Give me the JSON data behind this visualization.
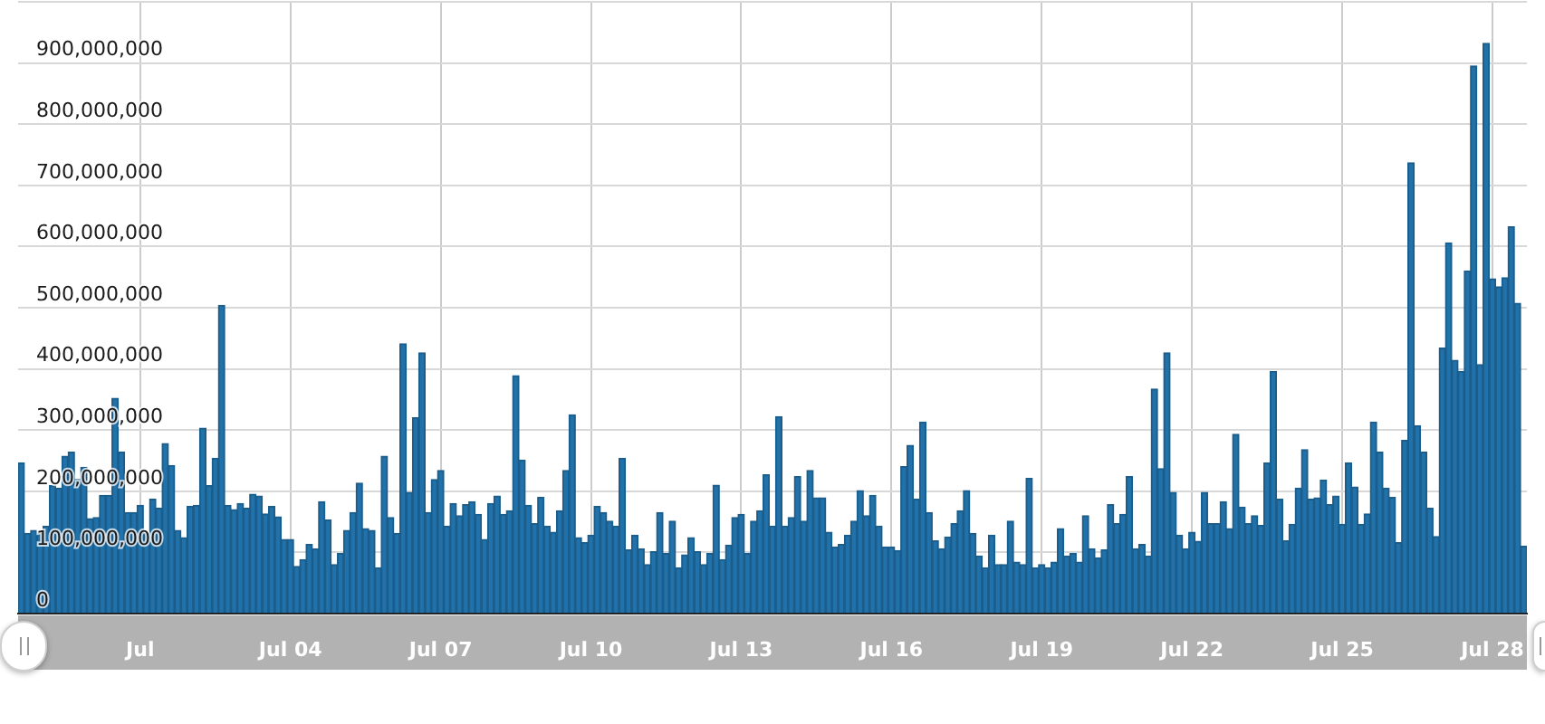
{
  "chart_data": {
    "type": "bar",
    "categories": [
      null,
      null,
      null,
      null,
      null,
      null,
      null,
      null,
      null,
      null,
      null,
      null,
      null,
      null,
      null,
      null,
      null,
      null,
      null,
      "Jul",
      null,
      null,
      null,
      null,
      null,
      null,
      null,
      null,
      null,
      null,
      null,
      null,
      null,
      null,
      null,
      null,
      null,
      null,
      null,
      null,
      null,
      null,
      null,
      "Jul 04",
      null,
      null,
      null,
      null,
      null,
      null,
      null,
      null,
      null,
      null,
      null,
      null,
      null,
      null,
      null,
      null,
      null,
      null,
      null,
      null,
      null,
      null,
      null,
      "Jul 07",
      null,
      null,
      null,
      null,
      null,
      null,
      null,
      null,
      null,
      null,
      null,
      null,
      null,
      null,
      null,
      null,
      null,
      null,
      null,
      null,
      null,
      null,
      null,
      "Jul 10",
      null,
      null,
      null,
      null,
      null,
      null,
      null,
      null,
      null,
      null,
      null,
      null,
      null,
      null,
      null,
      null,
      null,
      null,
      null,
      null,
      null,
      null,
      null,
      "Jul 13",
      null,
      null,
      null,
      null,
      null,
      null,
      null,
      null,
      null,
      null,
      null,
      null,
      null,
      null,
      null,
      null,
      null,
      null,
      null,
      null,
      null,
      null,
      null,
      "Jul 16",
      null,
      null,
      null,
      null,
      null,
      null,
      null,
      null,
      null,
      null,
      null,
      null,
      null,
      null,
      null,
      null,
      null,
      null,
      null,
      null,
      null,
      null,
      null,
      "Jul 19",
      null,
      null,
      null,
      null,
      null,
      null,
      null,
      null,
      null,
      null,
      null,
      null,
      null,
      null,
      null,
      null,
      null,
      null,
      null,
      null,
      null,
      null,
      null,
      "Jul 22",
      null,
      null,
      null,
      null,
      null,
      null,
      null,
      null,
      null,
      null,
      null,
      null,
      null,
      null,
      null,
      null,
      null,
      null,
      null,
      null,
      null,
      null,
      null,
      "Jul 25",
      null,
      null,
      null,
      null,
      null,
      null,
      null,
      null,
      null,
      null,
      null,
      null,
      null,
      null,
      null,
      null,
      null,
      null,
      null,
      null,
      null,
      null,
      null,
      "Jul 28",
      null,
      null,
      null,
      null,
      null
    ],
    "values": [
      246000000,
      131000000,
      136000000,
      131000000,
      143000000,
      209000000,
      205000000,
      257000000,
      264000000,
      219000000,
      239000000,
      155000000,
      157000000,
      193000000,
      193000000,
      352000000,
      264000000,
      165000000,
      165000000,
      177000000,
      131000000,
      187000000,
      172000000,
      278000000,
      242000000,
      136000000,
      124000000,
      175000000,
      177000000,
      303000000,
      209000000,
      254000000,
      504000000,
      177000000,
      170000000,
      180000000,
      172000000,
      195000000,
      192000000,
      163000000,
      175000000,
      158000000,
      121000000,
      121000000,
      77000000,
      88000000,
      113000000,
      106000000,
      183000000,
      153000000,
      80000000,
      98000000,
      136000000,
      165000000,
      213000000,
      139000000,
      136000000,
      75000000,
      257000000,
      157000000,
      131000000,
      441000000,
      198000000,
      320000000,
      426000000,
      165000000,
      219000000,
      234000000,
      143000000,
      180000000,
      160000000,
      178000000,
      183000000,
      162000000,
      121000000,
      180000000,
      192000000,
      162000000,
      168000000,
      389000000,
      251000000,
      177000000,
      147000000,
      190000000,
      143000000,
      133000000,
      168000000,
      234000000,
      325000000,
      124000000,
      116000000,
      128000000,
      175000000,
      165000000,
      151000000,
      143000000,
      254000000,
      104000000,
      128000000,
      106000000,
      80000000,
      101000000,
      165000000,
      98000000,
      151000000,
      75000000,
      96000000,
      124000000,
      101000000,
      80000000,
      98000000,
      210000000,
      88000000,
      112000000,
      157000000,
      162000000,
      98000000,
      151000000,
      168000000,
      227000000,
      143000000,
      322000000,
      143000000,
      157000000,
      224000000,
      151000000,
      234000000,
      189000000,
      189000000,
      133000000,
      109000000,
      113000000,
      128000000,
      151000000,
      201000000,
      160000000,
      193000000,
      143000000,
      109000000,
      109000000,
      103000000,
      240000000,
      275000000,
      187000000,
      313000000,
      165000000,
      119000000,
      106000000,
      125000000,
      147000000,
      168000000,
      201000000,
      131000000,
      94000000,
      75000000,
      128000000,
      80000000,
      80000000,
      151000000,
      84000000,
      80000000,
      221000000,
      75000000,
      80000000,
      75000000,
      84000000,
      139000000,
      94000000,
      98000000,
      84000000,
      160000000,
      106000000,
      91000000,
      104000000,
      178000000,
      147000000,
      162000000,
      224000000,
      106000000,
      113000000,
      94000000,
      367000000,
      237000000,
      426000000,
      198000000,
      128000000,
      106000000,
      133000000,
      118000000,
      198000000,
      147000000,
      147000000,
      183000000,
      139000000,
      293000000,
      174000000,
      147000000,
      160000000,
      144000000,
      246000000,
      396000000,
      187000000,
      119000000,
      146000000,
      205000000,
      268000000,
      187000000,
      189000000,
      218000000,
      178000000,
      192000000,
      146000000,
      246000000,
      207000000,
      146000000,
      163000000,
      313000000,
      264000000,
      205000000,
      190000000,
      116000000,
      283000000,
      737000000,
      307000000,
      264000000,
      172000000,
      126000000,
      434000000,
      606000000,
      414000000,
      396000000,
      560000000,
      895000000,
      407000000,
      932000000,
      547000000,
      534000000,
      549000000,
      632000000,
      507000000,
      110000000
    ],
    "color": "#2171aa",
    "ylim": [
      0,
      1000000000
    ],
    "yticks": [
      {
        "value": 0,
        "label": "0"
      },
      {
        "value": 100000000,
        "label": "100,000,000"
      },
      {
        "value": 200000000,
        "label": "200,000,000"
      },
      {
        "value": 300000000,
        "label": "300,000,000"
      },
      {
        "value": 400000000,
        "label": "400,000,000"
      },
      {
        "value": 500000000,
        "label": "500,000,000"
      },
      {
        "value": 600000000,
        "label": "600,000,000"
      },
      {
        "value": 700000000,
        "label": "700,000,000"
      },
      {
        "value": 800000000,
        "label": "800,000,000"
      },
      {
        "value": 900000000,
        "label": "900,000,000"
      },
      {
        "value": 1000000000,
        "label": null
      }
    ],
    "grid": true
  }
}
